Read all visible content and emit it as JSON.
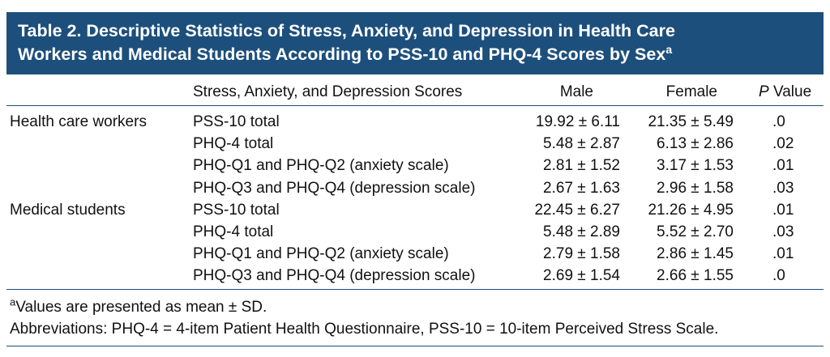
{
  "title": {
    "lines": [
      "Table 2. Descriptive Statistics of Stress, Anxiety, and Depression in Health Care",
      "Workers and Medical Students According to PSS-10 and PHQ-4 Scores by Sex"
    ],
    "superscript": "a"
  },
  "table": {
    "header": {
      "measure": "Stress, Anxiety, and Depression Scores",
      "male": "Male",
      "female": "Female",
      "p_italic": "P",
      "p_rest": "Value"
    },
    "groups": [
      {
        "label": "Health care workers",
        "rows": [
          [
            "PSS-10 total",
            "19.92 ± 6.11",
            "21.35 ± 5.49",
            ".0"
          ],
          [
            "PHQ-4 total",
            "5.48 ± 2.87",
            "6.13 ± 2.86",
            ".02"
          ],
          [
            "PHQ-Q1 and PHQ-Q2 (anxiety scale)",
            "2.81 ± 1.52",
            "3.17 ± 1.53",
            ".01"
          ],
          [
            "PHQ-Q3 and PHQ-Q4 (depression scale)",
            "2.67 ± 1.63",
            "2.96 ± 1.58",
            ".03"
          ]
        ]
      },
      {
        "label": "Medical students",
        "rows": [
          [
            "PSS-10 total",
            "22.45 ± 6.27",
            "21.26 ± 4.95",
            ".01"
          ],
          [
            "PHQ-4 total",
            "5.48 ± 2.89",
            "5.52 ± 2.70",
            ".03"
          ],
          [
            "PHQ-Q1 and PHQ-Q2 (anxiety scale)",
            "2.79 ± 1.58",
            "2.86 ± 1.45",
            ".01"
          ],
          [
            "PHQ-Q3 and PHQ-Q4 (depression scale)",
            "2.69 ± 1.54",
            "2.66 ± 1.55",
            ".0"
          ]
        ]
      }
    ]
  },
  "footnotes": {
    "a_mark": "a",
    "a_text": "Values are presented as mean ± SD.",
    "abbreviations": "Abbreviations: PHQ-4 = 4-item Patient Health Questionnaire, PSS-10 = 10-item Perceived Stress Scale."
  }
}
